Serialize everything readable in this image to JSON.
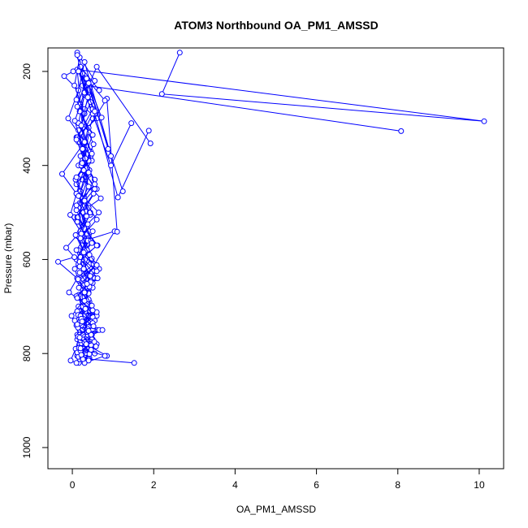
{
  "chart_data": {
    "type": "line",
    "title": "ATOM3 Northbound OA_PM1_AMSSD",
    "xlabel": "OA_PM1_AMSSD",
    "ylabel": "Pressure (mbar)",
    "xlim": [
      -0.6,
      10.6
    ],
    "ylim": [
      1045,
      150
    ],
    "y_reversed": true,
    "x_ticks": [
      0,
      2,
      4,
      6,
      8,
      10
    ],
    "y_ticks": [
      200,
      400,
      600,
      800,
      1000
    ],
    "grid": false,
    "legend": "none",
    "series_color": "#0000ff",
    "series": [
      {
        "x": [
          2.64,
          2.2,
          10.12,
          0.12,
          0.25,
          0.4,
          0.18,
          0.35,
          0.06,
          0.3,
          0.1,
          0.28,
          0.42,
          0.22,
          0.5,
          0.15,
          0.62,
          0.3,
          1.04,
          0.2,
          0.48,
          0.12,
          0.35,
          0.55,
          0.25,
          0.4,
          1.52
        ],
        "y": [
          160,
          248,
          306,
          196,
          320,
          420,
          480,
          560,
          620,
          690,
          740,
          790,
          810,
          700,
          650,
          580,
          620,
          560,
          540,
          660,
          720,
          760,
          790,
          800,
          808,
          812,
          820
        ]
      },
      {
        "x": [
          8.08,
          0.35,
          0.2,
          0.6,
          0.1,
          0.45,
          0.25,
          0.7,
          0.05,
          0.5,
          0.3,
          0.15,
          0.55,
          0.22,
          0.4,
          0.28,
          0.62,
          0.18,
          0.12,
          0.85,
          0.33,
          0.48,
          0.26,
          0.8,
          0.3
        ],
        "y": [
          327,
          230,
          270,
          300,
          340,
          380,
          430,
          470,
          510,
          540,
          580,
          610,
          640,
          680,
          720,
          740,
          750,
          760,
          770,
          805,
          780,
          760,
          790,
          805,
          820
        ]
      },
      {
        "x": [
          1.88,
          1.12,
          0.42,
          0.2,
          0.5,
          0.32,
          0.15,
          0.6,
          0.25,
          0.4,
          0.1,
          0.55,
          0.3,
          0.22,
          0.45,
          0.18,
          0.66,
          0.28,
          0.5,
          0.35,
          0.2,
          0.4,
          0.74,
          0.26,
          0.3,
          0.16
        ],
        "y": [
          326,
          468,
          250,
          200,
          300,
          350,
          400,
          450,
          500,
          550,
          600,
          640,
          680,
          700,
          720,
          740,
          750,
          760,
          770,
          780,
          790,
          760,
          750,
          770,
          795,
          820
        ]
      },
      {
        "x": [
          1.24,
          0.12,
          0.55,
          0.3,
          0.2,
          0.48,
          0.1,
          0.4,
          0.26,
          0.62,
          0.18,
          0.35,
          0.5,
          0.15,
          0.44,
          0.27,
          0.6,
          0.22,
          0.38,
          0.3
        ],
        "y": [
          455,
          160,
          220,
          280,
          330,
          390,
          440,
          490,
          530,
          570,
          600,
          630,
          660,
          700,
          730,
          760,
          780,
          790,
          800,
          808
        ]
      },
      {
        "x": [
          1.92,
          0.6,
          0.3,
          0.15,
          0.45,
          0.22,
          0.52,
          0.12,
          0.38,
          0.27,
          0.66,
          0.2,
          0.42,
          0.32,
          0.55,
          0.18,
          0.48,
          0.26,
          0.35,
          0.12
        ],
        "y": [
          353,
          190,
          250,
          310,
          370,
          420,
          460,
          510,
          560,
          590,
          620,
          650,
          690,
          710,
          730,
          750,
          770,
          785,
          795,
          805
        ]
      },
      {
        "x": [
          1.1,
          0.85,
          0.4,
          0.2,
          0.55,
          0.3,
          0.12,
          0.46,
          0.24,
          0.62,
          0.16,
          0.38,
          0.5,
          0.28,
          0.44,
          0.2,
          0.58,
          0.33,
          0.25,
          0.4
        ],
        "y": [
          541,
          258,
          320,
          380,
          430,
          470,
          520,
          560,
          600,
          640,
          660,
          690,
          720,
          740,
          760,
          775,
          785,
          795,
          805,
          815
        ]
      },
      {
        "x": [
          1.45,
          0.95,
          0.25,
          0.5,
          0.15,
          0.42,
          0.3,
          0.65,
          0.2,
          0.36,
          0.52,
          0.12,
          0.4,
          0.28,
          0.6,
          0.22,
          0.46,
          0.34,
          0.18,
          0.3
        ],
        "y": [
          310,
          400,
          230,
          290,
          350,
          410,
          470,
          500,
          540,
          580,
          610,
          640,
          670,
          700,
          720,
          740,
          760,
          780,
          790,
          820
        ]
      },
      {
        "x": [
          0.02,
          -0.2,
          0.15,
          -0.1,
          0.3,
          -0.25,
          0.1,
          -0.05,
          0.2,
          -0.15,
          0.05,
          -0.35,
          0.12,
          -0.08,
          0.25,
          -0.02,
          0.18,
          0.08,
          -0.04,
          0.1
        ],
        "y": [
          200,
          210,
          240,
          300,
          350,
          418,
          460,
          505,
          540,
          575,
          595,
          605,
          640,
          670,
          690,
          720,
          760,
          790,
          815,
          820
        ]
      },
      {
        "x": [
          0.18,
          0.05,
          0.3,
          0.12,
          0.4,
          0.08,
          0.26,
          0.14,
          0.36,
          0.1,
          0.22,
          0.45,
          0.16,
          0.32,
          0.06,
          0.28,
          0.2,
          0.38,
          0.12,
          0.24
        ],
        "y": [
          170,
          230,
          290,
          340,
          390,
          430,
          470,
          510,
          545,
          580,
          610,
          645,
          675,
          705,
          730,
          755,
          770,
          785,
          798,
          810
        ]
      },
      {
        "x": [
          0.95,
          0.3,
          0.1,
          0.42,
          0.22,
          0.55,
          0.15,
          0.35,
          0.48,
          0.2,
          0.6,
          0.28,
          0.4,
          0.12,
          0.5,
          0.25,
          0.36,
          0.18,
          0.44,
          0.32
        ],
        "y": [
          380,
          180,
          260,
          330,
          400,
          450,
          490,
          530,
          565,
          595,
          625,
          655,
          685,
          710,
          735,
          750,
          765,
          780,
          793,
          803
        ]
      },
      {
        "x": [
          0.8,
          0.25,
          0.5,
          0.1,
          0.36,
          0.2,
          0.44,
          0.12,
          0.3,
          0.58,
          0.16,
          0.4,
          0.26,
          0.5,
          0.14,
          0.34,
          0.22,
          0.46,
          0.3,
          0.18
        ],
        "y": [
          262,
          205,
          280,
          345,
          405,
          455,
          505,
          550,
          585,
          615,
          645,
          672,
          700,
          722,
          745,
          762,
          778,
          790,
          800,
          812
        ]
      },
      {
        "x": [
          0.72,
          0.35,
          0.12,
          0.5,
          0.24,
          0.4,
          0.1,
          0.3,
          0.6,
          0.18,
          0.44,
          0.26,
          0.36,
          0.14,
          0.52,
          0.28,
          0.2,
          0.4,
          0.32,
          0.15
        ],
        "y": [
          298,
          215,
          275,
          335,
          395,
          445,
          495,
          535,
          570,
          605,
          635,
          665,
          695,
          718,
          742,
          758,
          772,
          786,
          797,
          807
        ]
      },
      {
        "x": [
          0.66,
          0.2,
          0.45,
          0.15,
          0.32,
          0.55,
          0.1,
          0.38,
          0.25,
          0.48,
          0.18,
          0.42,
          0.3,
          0.6,
          0.12,
          0.35,
          0.24,
          0.46,
          0.2,
          0.3
        ],
        "y": [
          240,
          190,
          265,
          325,
          385,
          440,
          485,
          525,
          560,
          598,
          628,
          658,
          688,
          712,
          738,
          754,
          768,
          782,
          794,
          805
        ]
      },
      {
        "x": [
          0.88,
          0.4,
          0.18,
          0.52,
          0.28,
          0.1,
          0.44,
          0.22,
          0.36,
          0.6,
          0.14,
          0.3,
          0.48,
          0.2,
          0.4,
          0.26,
          0.54,
          0.16,
          0.34,
          0.24
        ],
        "y": [
          365,
          225,
          285,
          355,
          410,
          460,
          500,
          545,
          580,
          612,
          642,
          670,
          698,
          720,
          744,
          760,
          775,
          788,
          799,
          809
        ]
      },
      {
        "x": [
          0.12,
          0.3,
          0.06,
          0.25,
          0.4,
          0.15,
          0.35,
          0.08,
          0.28,
          0.18,
          0.45,
          0.1,
          0.32,
          0.22,
          0.38,
          0.14,
          0.3,
          0.2,
          0.42,
          0.26
        ],
        "y": [
          165,
          245,
          305,
          365,
          415,
          465,
          508,
          548,
          585,
          615,
          648,
          678,
          705,
          726,
          748,
          764,
          776,
          789,
          801,
          812
        ]
      },
      {
        "x": [
          0.55,
          0.15,
          0.38,
          0.22,
          0.48,
          0.1,
          0.3,
          0.6,
          0.2,
          0.42,
          0.28,
          0.36,
          0.12,
          0.5,
          0.24,
          0.4,
          0.18,
          0.34,
          0.46,
          0.22
        ],
        "y": [
          285,
          200,
          255,
          315,
          375,
          425,
          475,
          515,
          555,
          590,
          620,
          652,
          682,
          708,
          732,
          752,
          766,
          780,
          792,
          803
        ]
      }
    ]
  }
}
